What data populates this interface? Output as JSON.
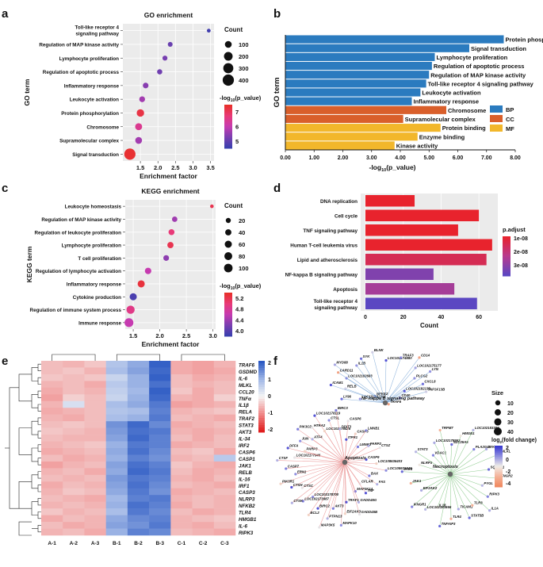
{
  "panel_labels": [
    "a",
    "b",
    "c",
    "d",
    "e",
    "f"
  ],
  "chart_data": [
    {
      "id": "a",
      "type": "scatter",
      "title": "GO enrichment",
      "xlabel": "Enrichment factor",
      "ylabel": "GO term",
      "xlim": [
        1.0,
        3.6
      ],
      "xticks": [
        "1.5",
        "2.0",
        "2.5",
        "3.0",
        "3.5"
      ],
      "categories": [
        "Toll-like receptor 4 signaling pathway",
        "Regulation of MAP kinase activity",
        "Lymphocyte proliferation",
        "Regulation of apoptotic process",
        "Inflammatory response",
        "Leukocyte activation",
        "Protein phosphorylation",
        "Chromosome",
        "Supramolecular complex",
        "Signal transduction"
      ],
      "x": [
        3.45,
        2.35,
        2.2,
        2.05,
        1.65,
        1.55,
        1.5,
        1.45,
        1.45,
        1.2
      ],
      "count": [
        10,
        30,
        35,
        40,
        55,
        60,
        130,
        110,
        100,
        400
      ],
      "neglog10p": [
        4.4,
        4.9,
        5.1,
        5.0,
        5.3,
        5.6,
        7.4,
        6.5,
        5.6,
        7.6
      ],
      "size_legend_title": "Count",
      "size_legend": [
        "100",
        "200",
        "300",
        "400"
      ],
      "color_legend_title": "-log10(p_value)",
      "color_ticks": [
        "7",
        "6",
        "5"
      ]
    },
    {
      "id": "b",
      "type": "bar",
      "orientation": "horizontal",
      "xlabel": "-log10(p_value)",
      "ylabel": "GO term",
      "xlim": [
        0,
        8
      ],
      "xticks": [
        "0.00",
        "1.00",
        "2.00",
        "3.00",
        "4.00",
        "5.00",
        "6.00",
        "7.00",
        "8.00"
      ],
      "categories": [
        "Protein phosphorylation",
        "Signal transduction",
        "Lymphocyte proliferation",
        "Regulation of apoptotic process",
        "Regulation of MAP kinase activity",
        "Toll-like receptor 4 signaling pathway",
        "Leukocyte activation",
        "Inflammatory response",
        "Chromosome",
        "Supramolecular complex",
        "Protein binding",
        "Enzyme binding",
        "Kinase activity"
      ],
      "values": [
        7.6,
        6.4,
        5.2,
        5.1,
        5.0,
        4.9,
        4.7,
        4.4,
        5.6,
        4.1,
        5.4,
        4.6,
        3.8
      ],
      "groups": [
        "BP",
        "BP",
        "BP",
        "BP",
        "BP",
        "BP",
        "BP",
        "BP",
        "CC",
        "CC",
        "MF",
        "MF",
        "MF"
      ],
      "legend": [
        {
          "name": "BP",
          "color": "#2b7bbf"
        },
        {
          "name": "CC",
          "color": "#d95f2b"
        },
        {
          "name": "MF",
          "color": "#f2b72b"
        }
      ]
    },
    {
      "id": "c",
      "type": "scatter",
      "title": "KEGG enrichment",
      "xlabel": "Enrichment factor",
      "ylabel": "KEGG term",
      "xlim": [
        1.35,
        3.05
      ],
      "xticks": [
        "1.5",
        "2.0",
        "2.5",
        "3.0"
      ],
      "categories": [
        "Leukocyte homeostasis",
        "Regulation of MAP kinase activity",
        "Regulation of leukocyte proliferation",
        "Lymphocyte proliferation",
        "T cell proliferation",
        "Regulation of lymphocyte activation",
        "Inflammatory response",
        "Cytokine production",
        "Regulation of immune system process",
        "Immune response"
      ],
      "x": [
        2.98,
        2.28,
        2.22,
        2.2,
        2.12,
        1.78,
        1.65,
        1.5,
        1.45,
        1.42
      ],
      "count": [
        5,
        25,
        35,
        40,
        30,
        45,
        60,
        60,
        90,
        110
      ],
      "neglog10p": [
        5.1,
        4.3,
        4.9,
        5.1,
        4.2,
        4.5,
        5.2,
        3.8,
        4.8,
        4.5
      ],
      "size_legend_title": "Count",
      "size_legend": [
        "20",
        "40",
        "60",
        "80",
        "100"
      ],
      "color_legend_title": "-log10(p_value)",
      "color_ticks": [
        "5.2",
        "4.8",
        "4.4",
        "4.0"
      ]
    },
    {
      "id": "d",
      "type": "bar",
      "orientation": "horizontal",
      "xlabel": "Count",
      "xlim": [
        0,
        70
      ],
      "xticks": [
        "0",
        "20",
        "40",
        "60"
      ],
      "categories": [
        "DNA replication",
        "Cell cycle",
        "TNF signaling pathway",
        "Human T-cell leukemia virus",
        "Lipid and atherosclerosis",
        "NF-kappa B signaling pathway",
        "Apoptosis",
        "Toll-like receptor 4 signaling pathway"
      ],
      "values": [
        26,
        60,
        49,
        67,
        64,
        36,
        47,
        59
      ],
      "p_adjust": [
        1e-08,
        1e-08,
        1e-08,
        1e-08,
        1.5e-08,
        3e-08,
        2.5e-08,
        3.5e-08
      ],
      "color_legend_title": "p.adjust",
      "color_ticks": [
        "1e-08",
        "2e-08",
        "3e-08"
      ]
    },
    {
      "id": "e",
      "type": "heatmap",
      "columns": [
        "A-1",
        "A-2",
        "A-3",
        "B-1",
        "B-2",
        "B-3",
        "C-1",
        "C-2",
        "C-3"
      ],
      "rows": [
        "TRAF6",
        "GSDMD",
        "IL-6",
        "MLKL",
        "CCL20",
        "TNFα",
        "IL1β",
        "RELA",
        "TRAF2",
        "STAT3",
        "AKT3",
        "IL-34",
        "IRF2",
        "CASP6",
        "CASP1",
        "JAK1",
        "RELB",
        "IL-16",
        "IRF1",
        "CASP3",
        "NLRP3",
        "NFKB2",
        "TLR4",
        "HMGB1",
        "IL-6",
        "RIPK3"
      ],
      "scale_ticks": [
        "2",
        "1",
        "0",
        "-1",
        "-2"
      ],
      "values": [
        [
          -0.6,
          -0.7,
          -0.5,
          0.9,
          1.3,
          2.2,
          -0.8,
          -0.9,
          -0.7
        ],
        [
          -0.6,
          -0.5,
          -0.7,
          1.0,
          1.4,
          2.1,
          -0.8,
          -0.9,
          -0.8
        ],
        [
          -0.5,
          -0.6,
          -0.5,
          0.6,
          1.2,
          2.2,
          -0.6,
          -0.8,
          -0.7
        ],
        [
          -0.7,
          -0.6,
          -0.8,
          0.8,
          1.2,
          2.0,
          -0.6,
          -0.7,
          -0.6
        ],
        [
          -0.8,
          -0.6,
          -0.7,
          0.7,
          1.1,
          2.2,
          -0.5,
          -0.8,
          -0.6
        ],
        [
          -0.9,
          -0.4,
          -0.6,
          0.6,
          1.2,
          2.1,
          -0.7,
          -0.8,
          -0.4
        ],
        [
          -0.7,
          0.4,
          -0.6,
          1.0,
          1.3,
          1.9,
          -0.9,
          -0.8,
          -0.7
        ],
        [
          -0.8,
          -0.7,
          -0.6,
          0.9,
          1.0,
          1.8,
          -0.7,
          -0.6,
          -0.5
        ],
        [
          -0.7,
          -0.8,
          -0.6,
          1.0,
          1.2,
          1.9,
          -0.6,
          -0.7,
          -0.8
        ],
        [
          -0.6,
          -0.5,
          -0.6,
          1.6,
          2.1,
          1.7,
          -0.8,
          -0.7,
          -0.6
        ],
        [
          -0.5,
          -0.6,
          -0.7,
          1.5,
          2.0,
          1.9,
          -0.7,
          -0.8,
          -0.7
        ],
        [
          -0.6,
          -0.7,
          -0.7,
          1.4,
          2.1,
          1.8,
          -0.6,
          -0.8,
          -0.6
        ],
        [
          -0.7,
          -0.6,
          -0.5,
          1.2,
          1.9,
          1.8,
          -0.8,
          -0.7,
          -0.6
        ],
        [
          -0.8,
          -0.7,
          -0.6,
          1.3,
          2.0,
          1.7,
          -0.6,
          -0.5,
          -0.8
        ],
        [
          -0.6,
          -0.8,
          -0.7,
          1.2,
          1.8,
          1.6,
          -0.7,
          -0.6,
          0.8
        ],
        [
          -0.9,
          -0.7,
          -0.6,
          1.4,
          2.0,
          1.8,
          -0.5,
          -0.7,
          -0.8
        ],
        [
          -0.7,
          -0.6,
          -0.8,
          1.3,
          2.1,
          1.9,
          -0.6,
          -0.8,
          -0.7
        ],
        [
          -0.6,
          -0.7,
          -0.6,
          1.5,
          1.9,
          1.8,
          -0.7,
          -0.8,
          -0.6
        ],
        [
          -0.8,
          -0.6,
          -0.7,
          1.4,
          2.0,
          1.7,
          -0.6,
          -0.7,
          -0.8
        ],
        [
          -0.7,
          -0.5,
          -0.6,
          1.3,
          1.9,
          1.6,
          -0.8,
          -0.7,
          -0.6
        ],
        [
          -0.6,
          -0.7,
          -0.8,
          1.1,
          1.8,
          1.9,
          -0.7,
          -0.6,
          -0.7
        ],
        [
          -0.7,
          -0.6,
          -0.7,
          1.2,
          2.0,
          1.8,
          -0.8,
          -0.6,
          -0.7
        ],
        [
          -0.5,
          -0.7,
          -0.6,
          1.0,
          1.9,
          1.7,
          -0.6,
          -0.8,
          -0.7
        ],
        [
          -0.8,
          -0.6,
          -0.7,
          1.3,
          1.7,
          1.8,
          -0.7,
          -0.6,
          -0.5
        ],
        [
          -0.6,
          -0.8,
          -0.7,
          1.4,
          1.6,
          1.9,
          -0.7,
          -0.8,
          -0.6
        ],
        [
          -0.7,
          -0.6,
          -0.8,
          1.2,
          1.8,
          1.7,
          -0.6,
          -0.7,
          -0.8
        ]
      ]
    }
  ],
  "network_f": {
    "hubs": [
      "NF-kappa B signaling pathway",
      "Apoptosis",
      "Necroptosis"
    ],
    "hub_colors": [
      "#7aa6d6",
      "#e88a8a",
      "#7ec47e"
    ],
    "size_legend_title": "Size",
    "size_legend": [
      "10",
      "20",
      "30",
      "40"
    ],
    "color_legend_title": "log2(fold change)",
    "color_ticks": [
      "2",
      "0",
      "-2",
      "-4"
    ],
    "genes_nfkb": [
      "PLCG2",
      "CXCL8",
      "TNFSF13B",
      "LOC102182135",
      "CD40",
      "TRAF6",
      "NFKB2",
      "LOC102182395",
      "LY96",
      "RELB",
      "ICAM1",
      "LOC102182683",
      "CARD11",
      "MYD88",
      "IL1B",
      "SYK",
      "BLNK",
      "LOC102174880",
      "TRAF3",
      "CD14",
      "LOC102175177",
      "LYN"
    ],
    "genes_apop": [
      "MAP3K14",
      "GADD45G",
      "GADD45B",
      "TRAF1",
      "EIF2AK3",
      "MAPK10",
      "AKT3",
      "PTPN13",
      "MAP3K5",
      "BIRC2",
      "BCL2",
      "LOC102178700",
      "LOC102173987",
      "CTSK",
      "CTSC",
      "CTSH",
      "PIK3R1",
      "ERN1",
      "CASP7",
      "CTSF",
      "LOC102177946",
      "DFFA",
      "PARP3",
      "JUN",
      "PIK3CD",
      "ATF4",
      "HTRA2",
      "LOC102178119",
      "LOC102178426",
      "CTSL",
      "BIRC3",
      "DDIT3",
      "CASP6",
      "ITPR1",
      "CASP3",
      "LMNB1",
      "LMNB2",
      "PARP2",
      "CTSZ",
      "CASP9",
      "LOC108636403",
      "LOC108636045",
      "BAX",
      "FAS",
      "CFLAR",
      "TNF"
    ],
    "genes_necro": [
      "TICAM1",
      "TLR4",
      "TNFAIP3",
      "IL18",
      "LOC102183866",
      "IFNGR1",
      "EIF2AK2",
      "JAK1",
      "JAK3",
      "NLRP3",
      "STAT3",
      "VDAC1",
      "LOC102178953",
      "TRPM7",
      "SLC25A5",
      "HMGB1",
      "LOC102183306",
      "PLA2G4E",
      "TYK2",
      "MLKL",
      "SQSTM1",
      "IFNGR2",
      "PYGL",
      "RIPK3",
      "IL1A",
      "TLR3",
      "STAT5B"
    ]
  }
}
